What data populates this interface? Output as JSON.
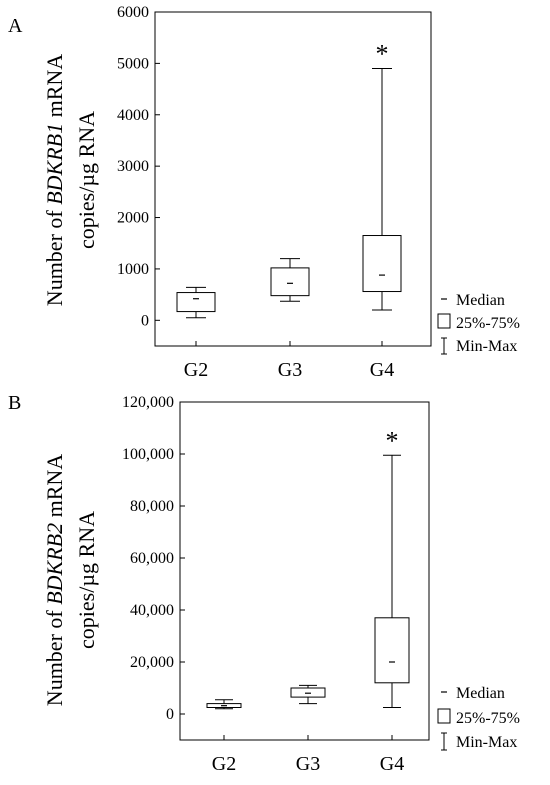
{
  "panels": [
    {
      "label": "A",
      "ylabel_line1_prefix": "Number of ",
      "ylabel_line1_italic": "BDKRB1",
      "ylabel_line1_suffix": " mRNA",
      "ylabel_line2": "copies/µg RNA",
      "significance_marker": "*"
    },
    {
      "label": "B",
      "ylabel_line1_prefix": "Number of ",
      "ylabel_line1_italic": "BDKRB2",
      "ylabel_line1_suffix": " mRNA",
      "ylabel_line2": "copies/µg RNA",
      "significance_marker": "*"
    }
  ],
  "legend": {
    "median": "Median",
    "iqr": "25%-75%",
    "range": "Min-Max"
  },
  "chart_data": [
    {
      "type": "box",
      "categories": [
        "G2",
        "G3",
        "G4"
      ],
      "ylim": [
        -500,
        6000
      ],
      "yticks": [
        0,
        1000,
        2000,
        3000,
        4000,
        5000,
        6000
      ],
      "ytick_labels": [
        "0",
        "1000",
        "2000",
        "3000",
        "4000",
        "5000",
        "6000"
      ],
      "boxes": [
        {
          "min": 50,
          "q1": 170,
          "median": 420,
          "q3": 540,
          "max": 640
        },
        {
          "min": 370,
          "q1": 480,
          "median": 720,
          "q3": 1020,
          "max": 1200
        },
        {
          "min": 200,
          "q1": 560,
          "median": 880,
          "q3": 1650,
          "max": 4900
        }
      ],
      "significant": [
        false,
        false,
        true
      ]
    },
    {
      "type": "box",
      "categories": [
        "G2",
        "G3",
        "G4"
      ],
      "ylim": [
        -10000,
        120000
      ],
      "yticks": [
        0,
        20000,
        40000,
        60000,
        80000,
        100000,
        120000
      ],
      "ytick_labels": [
        "0",
        "20,000",
        "40,000",
        "60,000",
        "80,000",
        "100,000",
        "120,000"
      ],
      "boxes": [
        {
          "min": 2000,
          "q1": 2500,
          "median": 3200,
          "q3": 4000,
          "max": 5500
        },
        {
          "min": 4000,
          "q1": 6500,
          "median": 8000,
          "q3": 10000,
          "max": 11000
        },
        {
          "min": 2500,
          "q1": 12000,
          "median": 20000,
          "q3": 37000,
          "max": 99500
        }
      ],
      "significant": [
        false,
        false,
        true
      ]
    }
  ]
}
